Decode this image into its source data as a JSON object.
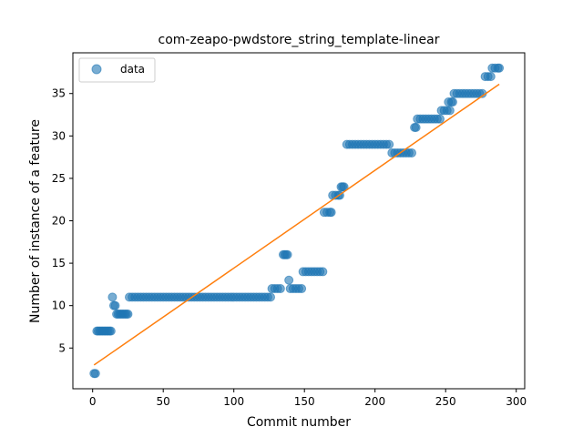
{
  "chart_data": {
    "type": "scatter",
    "title": "com-zeapo-pwdstore_string_template-linear",
    "xlabel": "Commit number",
    "ylabel": "Number of instance of a feature",
    "xlim": [
      -14,
      306
    ],
    "ylim": [
      0.2,
      39.8
    ],
    "xticks": [
      0,
      50,
      100,
      150,
      200,
      250,
      300
    ],
    "yticks": [
      5,
      10,
      15,
      20,
      25,
      30,
      35
    ],
    "grid": false,
    "legend": {
      "placement": "top-left",
      "entries": [
        "data"
      ]
    },
    "colors": {
      "data": "#1f77b4",
      "fit": "#ff7f0e"
    },
    "series": [
      {
        "name": "data",
        "kind": "scatter",
        "points": [
          [
            1,
            2
          ],
          [
            2,
            2
          ],
          [
            3,
            7
          ],
          [
            4,
            7
          ],
          [
            5,
            7
          ],
          [
            6,
            7
          ],
          [
            7,
            7
          ],
          [
            8,
            7
          ],
          [
            9,
            7
          ],
          [
            10,
            7
          ],
          [
            11,
            7
          ],
          [
            12,
            7
          ],
          [
            13,
            7
          ],
          [
            14,
            11
          ],
          [
            15,
            10
          ],
          [
            16,
            10
          ],
          [
            17,
            9
          ],
          [
            18,
            9
          ],
          [
            19,
            9
          ],
          [
            20,
            9
          ],
          [
            21,
            9
          ],
          [
            22,
            9
          ],
          [
            23,
            9
          ],
          [
            24,
            9
          ],
          [
            25,
            9
          ],
          [
            26,
            11
          ],
          [
            28,
            11
          ],
          [
            30,
            11
          ],
          [
            32,
            11
          ],
          [
            34,
            11
          ],
          [
            36,
            11
          ],
          [
            38,
            11
          ],
          [
            40,
            11
          ],
          [
            42,
            11
          ],
          [
            44,
            11
          ],
          [
            46,
            11
          ],
          [
            48,
            11
          ],
          [
            50,
            11
          ],
          [
            52,
            11
          ],
          [
            54,
            11
          ],
          [
            56,
            11
          ],
          [
            58,
            11
          ],
          [
            60,
            11
          ],
          [
            62,
            11
          ],
          [
            64,
            11
          ],
          [
            66,
            11
          ],
          [
            68,
            11
          ],
          [
            70,
            11
          ],
          [
            72,
            11
          ],
          [
            74,
            11
          ],
          [
            76,
            11
          ],
          [
            78,
            11
          ],
          [
            80,
            11
          ],
          [
            82,
            11
          ],
          [
            84,
            11
          ],
          [
            86,
            11
          ],
          [
            88,
            11
          ],
          [
            90,
            11
          ],
          [
            92,
            11
          ],
          [
            94,
            11
          ],
          [
            96,
            11
          ],
          [
            98,
            11
          ],
          [
            100,
            11
          ],
          [
            102,
            11
          ],
          [
            104,
            11
          ],
          [
            106,
            11
          ],
          [
            108,
            11
          ],
          [
            110,
            11
          ],
          [
            112,
            11
          ],
          [
            114,
            11
          ],
          [
            116,
            11
          ],
          [
            118,
            11
          ],
          [
            120,
            11
          ],
          [
            122,
            11
          ],
          [
            124,
            11
          ],
          [
            126,
            11
          ],
          [
            127,
            12
          ],
          [
            129,
            12
          ],
          [
            131,
            12
          ],
          [
            133,
            12
          ],
          [
            135,
            16
          ],
          [
            136,
            16
          ],
          [
            137,
            16
          ],
          [
            138,
            16
          ],
          [
            139,
            13
          ],
          [
            140,
            12
          ],
          [
            142,
            12
          ],
          [
            144,
            12
          ],
          [
            146,
            12
          ],
          [
            148,
            12
          ],
          [
            149,
            14
          ],
          [
            151,
            14
          ],
          [
            153,
            14
          ],
          [
            155,
            14
          ],
          [
            157,
            14
          ],
          [
            159,
            14
          ],
          [
            161,
            14
          ],
          [
            163,
            14
          ],
          [
            164,
            21
          ],
          [
            166,
            21
          ],
          [
            168,
            21
          ],
          [
            169,
            21
          ],
          [
            170,
            23
          ],
          [
            172,
            23
          ],
          [
            174,
            23
          ],
          [
            175,
            23
          ],
          [
            176,
            24
          ],
          [
            177,
            24
          ],
          [
            178,
            24
          ],
          [
            180,
            29
          ],
          [
            182,
            29
          ],
          [
            184,
            29
          ],
          [
            186,
            29
          ],
          [
            188,
            29
          ],
          [
            190,
            29
          ],
          [
            192,
            29
          ],
          [
            194,
            29
          ],
          [
            196,
            29
          ],
          [
            198,
            29
          ],
          [
            200,
            29
          ],
          [
            202,
            29
          ],
          [
            204,
            29
          ],
          [
            206,
            29
          ],
          [
            208,
            29
          ],
          [
            210,
            29
          ],
          [
            212,
            28
          ],
          [
            214,
            28
          ],
          [
            216,
            28
          ],
          [
            218,
            28
          ],
          [
            220,
            28
          ],
          [
            222,
            28
          ],
          [
            224,
            28
          ],
          [
            226,
            28
          ],
          [
            228,
            31
          ],
          [
            229,
            31
          ],
          [
            230,
            32
          ],
          [
            232,
            32
          ],
          [
            234,
            32
          ],
          [
            236,
            32
          ],
          [
            238,
            32
          ],
          [
            240,
            32
          ],
          [
            242,
            32
          ],
          [
            244,
            32
          ],
          [
            246,
            32
          ],
          [
            247,
            33
          ],
          [
            249,
            33
          ],
          [
            251,
            33
          ],
          [
            253,
            33
          ],
          [
            252,
            34
          ],
          [
            254,
            34
          ],
          [
            255,
            34
          ],
          [
            256,
            35
          ],
          [
            258,
            35
          ],
          [
            260,
            35
          ],
          [
            262,
            35
          ],
          [
            264,
            35
          ],
          [
            266,
            35
          ],
          [
            268,
            35
          ],
          [
            270,
            35
          ],
          [
            272,
            35
          ],
          [
            274,
            35
          ],
          [
            276,
            35
          ],
          [
            278,
            37
          ],
          [
            280,
            37
          ],
          [
            282,
            37
          ],
          [
            283,
            38
          ],
          [
            285,
            38
          ],
          [
            287,
            38
          ],
          [
            288,
            38
          ]
        ]
      },
      {
        "kind": "line",
        "points": [
          [
            1,
            3.0
          ],
          [
            288,
            36.1
          ]
        ]
      }
    ]
  }
}
